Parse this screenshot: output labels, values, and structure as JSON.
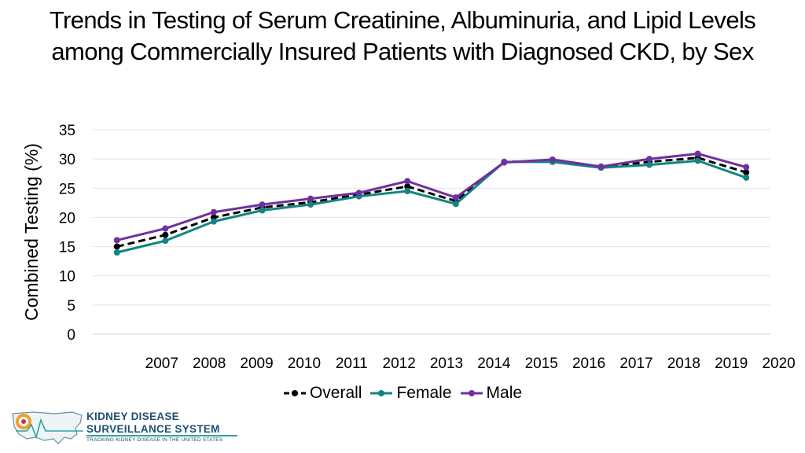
{
  "title": "Trends in Testing of Serum Creatinine, Albuminuria, and Lipid Levels among Commercially Insured Patients with Diagnosed CKD, by Sex",
  "logo": {
    "line1": "KIDNEY DISEASE",
    "line2": "SURVEILLANCE SYSTEM",
    "line3": "TRACKING KIDNEY DISEASE IN THE UNITED STATES",
    "icon": "us-map-icon"
  },
  "chart_data": {
    "type": "line",
    "title": "Trends in Testing of Serum Creatinine, Albuminuria, and Lipid Levels among Commercially Insured Patients with Diagnosed CKD, by Sex",
    "xlabel": "",
    "ylabel": "Combined Testing (%)",
    "ylim": [
      0,
      35
    ],
    "yticks": [
      0,
      5,
      10,
      15,
      20,
      25,
      30,
      35
    ],
    "grid": true,
    "legend": "bottom",
    "categories": [
      "2007",
      "2008",
      "2009",
      "2010",
      "2011",
      "2012",
      "2013",
      "2014",
      "2015",
      "2016",
      "2017",
      "2018",
      "2019",
      "2020"
    ],
    "series": [
      {
        "name": "Overall",
        "color": "#000000",
        "dash": true,
        "values": [
          15.0,
          17.0,
          20.0,
          21.7,
          22.6,
          23.9,
          25.3,
          22.8,
          29.5,
          29.7,
          28.6,
          29.5,
          30.2,
          27.7
        ]
      },
      {
        "name": "Female",
        "color": "#138580",
        "dash": false,
        "values": [
          14.0,
          16.0,
          19.3,
          21.2,
          22.2,
          23.6,
          24.5,
          22.3,
          29.5,
          29.5,
          28.5,
          29.0,
          29.7,
          26.8
        ]
      },
      {
        "name": "Male",
        "color": "#7030a0",
        "dash": false,
        "values": [
          16.1,
          18.1,
          20.9,
          22.2,
          23.2,
          24.2,
          26.2,
          23.4,
          29.4,
          29.9,
          28.7,
          30.0,
          30.9,
          28.6
        ]
      }
    ]
  }
}
